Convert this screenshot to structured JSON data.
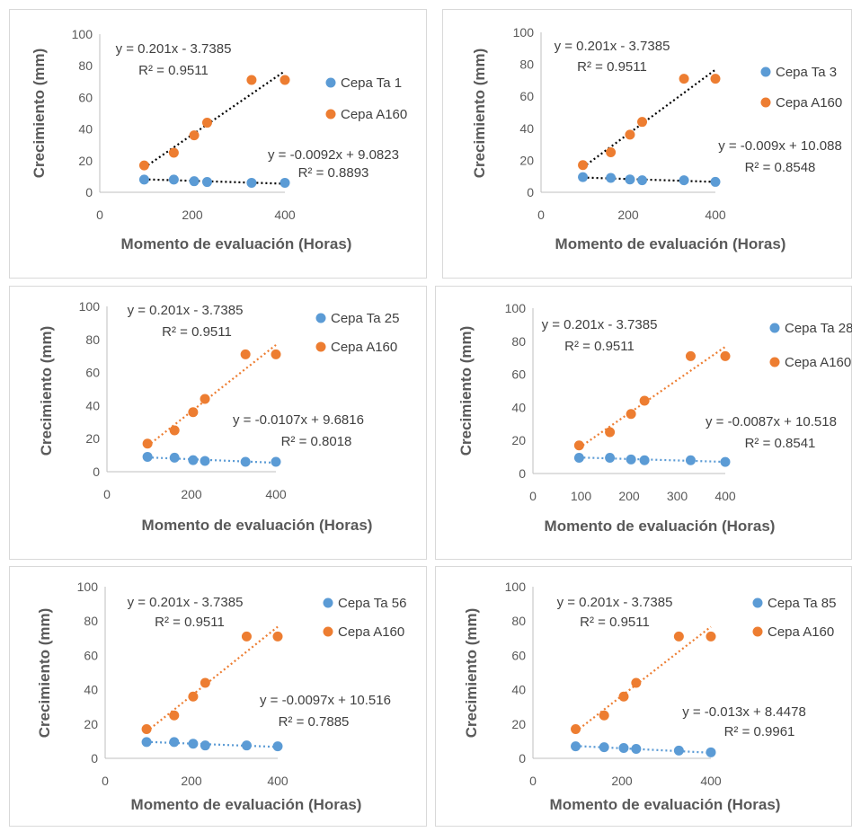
{
  "colors": {
    "blue": "#5b9bd5",
    "orange": "#ed7d31",
    "axis": "#595959",
    "text": "#404040"
  },
  "chart_data": [
    {
      "type": "scatter",
      "xlabel": "Momento de evaluación (Horas)",
      "ylabel": "Crecimiento (mm)",
      "xlim": [
        0,
        400
      ],
      "xticks": [
        0,
        200,
        400
      ],
      "ylim": [
        0,
        100
      ],
      "yticks": [
        0,
        20,
        40,
        60,
        80,
        100
      ],
      "legend_position": "right",
      "series": [
        {
          "name": "Cepa Ta 1",
          "color": "#5b9bd5",
          "trendline_style": "dotted-black",
          "points": [
            [
              96,
              8
            ],
            [
              160,
              8
            ],
            [
              204,
              7
            ],
            [
              232,
              6.5
            ],
            [
              328,
              6
            ],
            [
              400,
              6
            ]
          ],
          "trend": {
            "slope": -0.0092,
            "intercept": 9.0823,
            "equation": "y = -0.0092x + 9.0823",
            "r2": "R² = 0.8893"
          }
        },
        {
          "name": "Cepa A160",
          "color": "#ed7d31",
          "trendline_style": "dotted-black",
          "points": [
            [
              96,
              17
            ],
            [
              160,
              25
            ],
            [
              204,
              36
            ],
            [
              232,
              44
            ],
            [
              328,
              71
            ],
            [
              400,
              71
            ]
          ],
          "trend": {
            "slope": 0.201,
            "intercept": -3.7385,
            "equation": "y = 0.201x - 3.7385",
            "r2": "R² = 0.9511"
          }
        }
      ]
    },
    {
      "type": "scatter",
      "xlabel": "Momento de evaluación (Horas)",
      "ylabel": "Crecimiento (mm)",
      "xlim": [
        0,
        400
      ],
      "xticks": [
        0,
        200,
        400
      ],
      "ylim": [
        0,
        100
      ],
      "yticks": [
        0,
        20,
        40,
        60,
        80,
        100
      ],
      "legend_position": "right",
      "series": [
        {
          "name": "Cepa Ta 3",
          "color": "#5b9bd5",
          "trendline_style": "dotted-black",
          "points": [
            [
              96,
              9.5
            ],
            [
              160,
              9
            ],
            [
              204,
              8
            ],
            [
              232,
              7.5
            ],
            [
              328,
              7.5
            ],
            [
              400,
              6.5
            ]
          ],
          "trend": {
            "slope": -0.009,
            "intercept": 10.088,
            "equation": "y = -0.009x + 10.088",
            "r2": "R² = 0.8548"
          }
        },
        {
          "name": "Cepa A160",
          "color": "#ed7d31",
          "trendline_style": "dotted-black",
          "points": [
            [
              96,
              17
            ],
            [
              160,
              25
            ],
            [
              204,
              36
            ],
            [
              232,
              44
            ],
            [
              328,
              71
            ],
            [
              400,
              71
            ]
          ],
          "trend": {
            "slope": 0.201,
            "intercept": -3.7385,
            "equation": "y = 0.201x - 3.7385",
            "r2": "R² = 0.9511"
          }
        }
      ]
    },
    {
      "type": "scatter",
      "xlabel": "Momento de evaluación (Horas)",
      "ylabel": "Crecimiento (mm)",
      "xlim": [
        0,
        400
      ],
      "xticks": [
        0,
        200,
        400
      ],
      "ylim": [
        0,
        100
      ],
      "yticks": [
        0,
        20,
        40,
        60,
        80,
        100
      ],
      "legend_position": "right",
      "series": [
        {
          "name": "Cepa Ta 25",
          "color": "#5b9bd5",
          "trendline_style": "dotted-color",
          "points": [
            [
              96,
              9
            ],
            [
              160,
              8.5
            ],
            [
              204,
              7
            ],
            [
              232,
              6.5
            ],
            [
              328,
              6
            ],
            [
              400,
              6
            ]
          ],
          "trend": {
            "slope": -0.0107,
            "intercept": 9.6816,
            "equation": "y = -0.0107x + 9.6816",
            "r2": "R² = 0.8018"
          }
        },
        {
          "name": "Cepa A160",
          "color": "#ed7d31",
          "trendline_style": "dotted-color",
          "points": [
            [
              96,
              17
            ],
            [
              160,
              25
            ],
            [
              204,
              36
            ],
            [
              232,
              44
            ],
            [
              328,
              71
            ],
            [
              400,
              71
            ]
          ],
          "trend": {
            "slope": 0.201,
            "intercept": -3.7385,
            "equation": "y = 0.201x - 3.7385",
            "r2": "R² = 0.9511"
          }
        }
      ]
    },
    {
      "type": "scatter",
      "xlabel": "Momento de evaluación (Horas)",
      "ylabel": "Crecimiento (mm)",
      "xlim": [
        0,
        400
      ],
      "xticks": [
        0,
        100,
        200,
        300,
        400
      ],
      "ylim": [
        0,
        100
      ],
      "yticks": [
        0,
        20,
        40,
        60,
        80,
        100
      ],
      "legend_position": "right",
      "series": [
        {
          "name": "Cepa Ta 28",
          "color": "#5b9bd5",
          "trendline_style": "dotted-color",
          "points": [
            [
              96,
              9.5
            ],
            [
              160,
              9.5
            ],
            [
              204,
              8.5
            ],
            [
              232,
              8
            ],
            [
              328,
              8
            ],
            [
              400,
              7
            ]
          ],
          "trend": {
            "slope": -0.0087,
            "intercept": 10.518,
            "equation": "y = -0.0087x + 10.518",
            "r2": "R² = 0.8541"
          }
        },
        {
          "name": "Cepa A160",
          "color": "#ed7d31",
          "trendline_style": "dotted-color",
          "points": [
            [
              96,
              17
            ],
            [
              160,
              25
            ],
            [
              204,
              36
            ],
            [
              232,
              44
            ],
            [
              328,
              71
            ],
            [
              400,
              71
            ]
          ],
          "trend": {
            "slope": 0.201,
            "intercept": -3.7385,
            "equation": "y = 0.201x - 3.7385",
            "r2": "R² = 0.9511"
          }
        }
      ]
    },
    {
      "type": "scatter",
      "xlabel": "Momento de evaluación (Horas)",
      "ylabel": "Crecimiento (mm)",
      "xlim": [
        0,
        400
      ],
      "xticks": [
        0,
        200,
        400
      ],
      "ylim": [
        0,
        100
      ],
      "yticks": [
        0,
        20,
        40,
        60,
        80,
        100
      ],
      "legend_position": "right",
      "series": [
        {
          "name": "Cepa Ta 56",
          "color": "#5b9bd5",
          "trendline_style": "dotted-color",
          "points": [
            [
              96,
              9.5
            ],
            [
              160,
              9.5
            ],
            [
              204,
              8.5
            ],
            [
              232,
              7.5
            ],
            [
              328,
              7.5
            ],
            [
              400,
              7
            ]
          ],
          "trend": {
            "slope": -0.0097,
            "intercept": 10.516,
            "equation": "y = -0.0097x + 10.516",
            "r2": "R² = 0.7885"
          }
        },
        {
          "name": "Cepa A160",
          "color": "#ed7d31",
          "trendline_style": "dotted-color",
          "points": [
            [
              96,
              17
            ],
            [
              160,
              25
            ],
            [
              204,
              36
            ],
            [
              232,
              44
            ],
            [
              328,
              71
            ],
            [
              400,
              71
            ]
          ],
          "trend": {
            "slope": 0.201,
            "intercept": -3.7385,
            "equation": "y = 0.201x - 3.7385",
            "r2": "R² = 0.9511"
          }
        }
      ]
    },
    {
      "type": "scatter",
      "xlabel": "Momento de evaluación (Horas)",
      "ylabel": "Crecimiento (mm)",
      "xlim": [
        0,
        400
      ],
      "xticks": [
        0,
        200,
        400
      ],
      "ylim": [
        0,
        100
      ],
      "yticks": [
        0,
        20,
        40,
        60,
        80,
        100
      ],
      "legend_position": "right",
      "series": [
        {
          "name": "Cepa Ta 85",
          "color": "#5b9bd5",
          "trendline_style": "dotted-color",
          "points": [
            [
              96,
              7
            ],
            [
              160,
              6.5
            ],
            [
              204,
              6
            ],
            [
              232,
              5.5
            ],
            [
              328,
              4.5
            ],
            [
              400,
              3.5
            ]
          ],
          "trend": {
            "slope": -0.013,
            "intercept": 8.4478,
            "equation": "y = -0.013x + 8.4478",
            "r2": "R² = 0.9961"
          }
        },
        {
          "name": "Cepa A160",
          "color": "#ed7d31",
          "trendline_style": "dotted-color",
          "points": [
            [
              96,
              17
            ],
            [
              160,
              25
            ],
            [
              204,
              36
            ],
            [
              232,
              44
            ],
            [
              328,
              71
            ],
            [
              400,
              71
            ]
          ],
          "trend": {
            "slope": 0.201,
            "intercept": -3.7385,
            "equation": "y = 0.201x - 3.7385",
            "r2": "R² = 0.9511"
          }
        }
      ]
    }
  ]
}
